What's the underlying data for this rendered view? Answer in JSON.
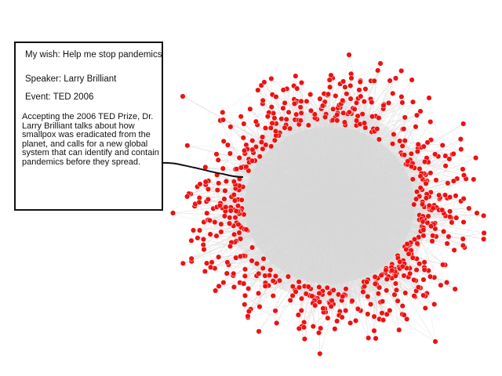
{
  "info_box": {
    "title": "My wish: Help me stop pandemics",
    "speaker": "Speaker: Larry Brilliant",
    "event": "Event: TED 2006",
    "description": "Accepting the 2006 TED Prize, Dr. Larry Brilliant talks about how smallpox was eradicated from the planet, and calls for a new global system that can identify and contain pandemics before they spread."
  },
  "colors": {
    "node": "#ee1111",
    "edge": "#d9d9d9",
    "callout": "#111111"
  }
}
